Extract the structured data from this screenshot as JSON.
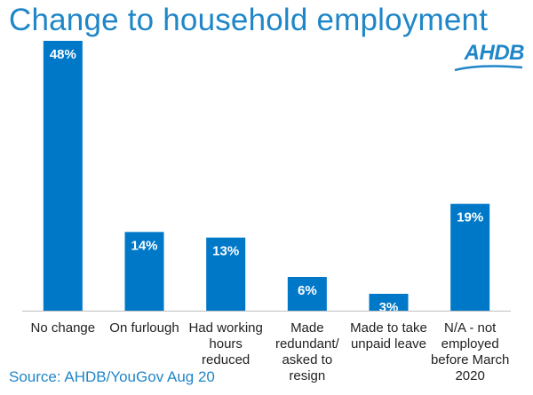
{
  "title": "Change to household employment",
  "logo": {
    "text": "AHDB"
  },
  "source": "Source: AHDB/YouGov Aug 20",
  "colors": {
    "bar": "#0078c8",
    "title": "#1f86c8",
    "label_inside": "#ffffff",
    "text": "#222222"
  },
  "chart_data": {
    "type": "bar",
    "categories": [
      "No change",
      "On furlough",
      "Had working hours reduced",
      "Made redundant/ asked to resign",
      "Made to take unpaid leave",
      "N/A - not employed before March 2020"
    ],
    "category_lines": [
      [
        "No change"
      ],
      [
        "On furlough"
      ],
      [
        "Had working",
        "hours",
        "reduced"
      ],
      [
        "Made",
        "redundant/",
        "asked to",
        "resign"
      ],
      [
        "Made to take",
        "unpaid leave"
      ],
      [
        "N/A - not",
        "employed",
        "before March",
        "2020"
      ]
    ],
    "values": [
      48,
      14,
      13,
      6,
      3,
      19
    ],
    "data_labels": [
      "48%",
      "14%",
      "13%",
      "6%",
      "3%",
      "19%"
    ],
    "unit": "%",
    "ylim": [
      0,
      48
    ],
    "grid": false,
    "legend": "none"
  }
}
